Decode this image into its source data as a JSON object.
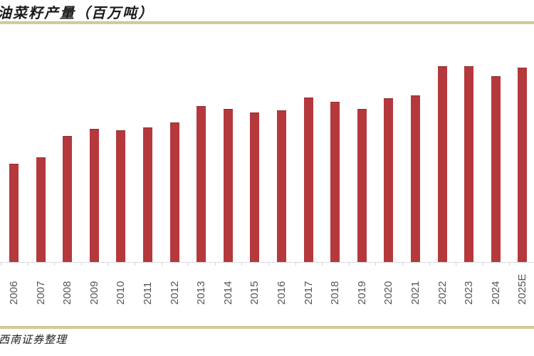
{
  "chart_data": {
    "type": "bar",
    "title": "油菜籽产量（百万吨）",
    "xlabel": "",
    "ylabel": "百万吨",
    "categories": [
      "2006",
      "2007",
      "2008",
      "2009",
      "2010",
      "2011",
      "2012",
      "2013",
      "2014",
      "2015",
      "2016",
      "2017",
      "2018",
      "2019",
      "2020",
      "2021",
      "2022",
      "2023",
      "2024",
      "2025E"
    ],
    "values": [
      45.0,
      47.9,
      57.7,
      60.9,
      60.3,
      61.6,
      63.8,
      71.3,
      70.0,
      68.4,
      69.4,
      75.2,
      73.3,
      70.0,
      74.9,
      76.5,
      89.6,
      89.6,
      85.0,
      88.9
    ],
    "ylim": [
      0,
      107
    ],
    "grid": false,
    "legend": null,
    "bar_color": "#b5393c",
    "source": "西南证券整理"
  },
  "header": {
    "title": "油菜籽产量（百万吨）"
  },
  "footer": {
    "source": "西南证券整理"
  }
}
